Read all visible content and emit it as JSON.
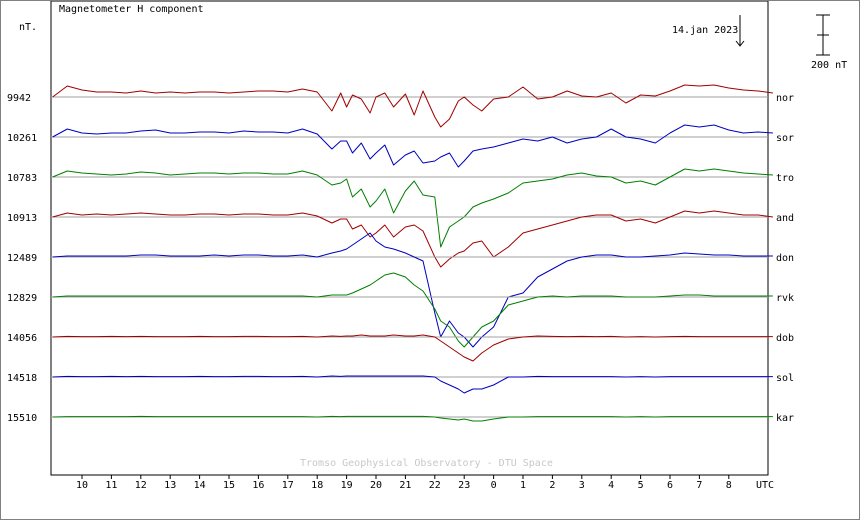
{
  "chart_data": {
    "type": "line",
    "title": "Magnetometer H component",
    "ylabel": "nT.",
    "date_label": "14.jan 2023",
    "scale_label": "200 nT",
    "scale_value_nT": 200,
    "credit": "Tromso Geophysical Observatory - DTU Space",
    "x_unit": "UTC",
    "x_ticks": [
      "10",
      "11",
      "12",
      "13",
      "14",
      "15",
      "16",
      "17",
      "18",
      "19",
      "20",
      "21",
      "22",
      "23",
      "0",
      "1",
      "2",
      "3",
      "4",
      "5",
      "6",
      "7",
      "8"
    ],
    "x_start_hour": 9,
    "x_end_hour": 33.5,
    "grid": "horizontal baselines",
    "colors": {
      "red": "#a00000",
      "blue": "#0000c0",
      "green": "#008000",
      "baseline": "#a0a0a0"
    },
    "series": [
      {
        "name": "nor",
        "baseline": "9942",
        "color": "#a00000",
        "x": [
          9.0,
          9.5,
          10.0,
          10.5,
          11.0,
          11.5,
          12.0,
          12.5,
          13.0,
          13.5,
          14.0,
          14.5,
          15.0,
          15.5,
          16.0,
          16.5,
          17.0,
          17.5,
          18.0,
          18.5,
          18.8,
          19.0,
          19.2,
          19.5,
          19.8,
          20.0,
          20.3,
          20.6,
          21.0,
          21.3,
          21.6,
          22.0,
          22.2,
          22.5,
          22.8,
          23.0,
          23.3,
          23.6,
          24.0,
          24.5,
          25.0,
          25.5,
          26.0,
          26.5,
          27.0,
          27.5,
          28.0,
          28.5,
          29.0,
          29.5,
          30.0,
          30.5,
          31.0,
          31.5,
          32.0,
          32.5,
          33.0,
          33.5
        ],
        "y": [
          0,
          55,
          35,
          25,
          25,
          20,
          30,
          20,
          25,
          20,
          25,
          25,
          20,
          25,
          30,
          30,
          25,
          40,
          25,
          -70,
          20,
          -50,
          10,
          -10,
          -80,
          0,
          20,
          -50,
          15,
          -90,
          30,
          -100,
          -150,
          -110,
          -20,
          0,
          -40,
          -70,
          -10,
          0,
          50,
          -10,
          0,
          30,
          5,
          0,
          20,
          -30,
          10,
          5,
          30,
          60,
          55,
          60,
          45,
          35,
          30,
          20
        ]
      },
      {
        "name": "sor",
        "baseline": "10261",
        "color": "#0000c0",
        "x": [
          9.0,
          9.5,
          10.0,
          10.5,
          11.0,
          11.5,
          12.0,
          12.5,
          13.0,
          13.5,
          14.0,
          14.5,
          15.0,
          15.5,
          16.0,
          16.5,
          17.0,
          17.5,
          18.0,
          18.5,
          18.8,
          19.0,
          19.2,
          19.5,
          19.8,
          20.0,
          20.3,
          20.6,
          21.0,
          21.3,
          21.6,
          22.0,
          22.2,
          22.5,
          22.8,
          23.0,
          23.3,
          23.6,
          24.0,
          24.5,
          25.0,
          25.5,
          26.0,
          26.5,
          27.0,
          27.5,
          28.0,
          28.5,
          29.0,
          29.5,
          30.0,
          30.5,
          31.0,
          31.5,
          32.0,
          32.5,
          33.0,
          33.5
        ],
        "y": [
          0,
          40,
          20,
          15,
          20,
          20,
          30,
          35,
          20,
          20,
          25,
          25,
          20,
          30,
          25,
          25,
          20,
          40,
          15,
          -60,
          -20,
          -20,
          -80,
          -30,
          -110,
          -80,
          -40,
          -140,
          -90,
          -70,
          -130,
          -120,
          -100,
          -80,
          -150,
          -120,
          -70,
          -60,
          -50,
          -30,
          -10,
          -20,
          0,
          -30,
          -10,
          0,
          40,
          0,
          -10,
          -30,
          20,
          60,
          50,
          60,
          35,
          20,
          25,
          20
        ]
      },
      {
        "name": "tro",
        "baseline": "10783",
        "color": "#008000",
        "x": [
          9.0,
          9.5,
          10.0,
          10.5,
          11.0,
          11.5,
          12.0,
          12.5,
          13.0,
          13.5,
          14.0,
          14.5,
          15.0,
          15.5,
          16.0,
          16.5,
          17.0,
          17.5,
          18.0,
          18.5,
          18.8,
          19.0,
          19.2,
          19.5,
          19.8,
          20.0,
          20.3,
          20.6,
          21.0,
          21.3,
          21.6,
          22.0,
          22.2,
          22.5,
          22.8,
          23.0,
          23.3,
          23.6,
          24.0,
          24.5,
          25.0,
          25.5,
          26.0,
          26.5,
          27.0,
          27.5,
          28.0,
          28.5,
          29.0,
          29.5,
          30.0,
          30.5,
          31.0,
          31.5,
          32.0,
          32.5,
          33.0,
          33.5
        ],
        "y": [
          0,
          30,
          20,
          15,
          10,
          15,
          25,
          20,
          10,
          15,
          20,
          20,
          15,
          20,
          20,
          15,
          15,
          30,
          10,
          -40,
          -30,
          -10,
          -100,
          -60,
          -150,
          -120,
          -60,
          -180,
          -70,
          -20,
          -90,
          -100,
          -350,
          -250,
          -220,
          -200,
          -150,
          -130,
          -110,
          -80,
          -30,
          -20,
          -10,
          10,
          20,
          5,
          0,
          -30,
          -20,
          -40,
          0,
          40,
          30,
          40,
          30,
          20,
          15,
          10
        ]
      },
      {
        "name": "and",
        "baseline": "10913",
        "color": "#a00000",
        "x": [
          9.0,
          9.5,
          10.0,
          10.5,
          11.0,
          11.5,
          12.0,
          12.5,
          13.0,
          13.5,
          14.0,
          14.5,
          15.0,
          15.5,
          16.0,
          16.5,
          17.0,
          17.5,
          18.0,
          18.5,
          18.8,
          19.0,
          19.2,
          19.5,
          19.8,
          20.0,
          20.3,
          20.6,
          21.0,
          21.3,
          21.6,
          22.0,
          22.2,
          22.5,
          22.8,
          23.0,
          23.3,
          23.6,
          24.0,
          24.5,
          25.0,
          25.5,
          26.0,
          26.5,
          27.0,
          27.5,
          28.0,
          28.5,
          29.0,
          29.5,
          30.0,
          30.5,
          31.0,
          31.5,
          32.0,
          32.5,
          33.0,
          33.5
        ],
        "y": [
          0,
          20,
          10,
          15,
          10,
          15,
          20,
          15,
          10,
          10,
          15,
          15,
          10,
          15,
          15,
          10,
          10,
          20,
          5,
          -30,
          -10,
          -10,
          -60,
          -40,
          -100,
          -80,
          -40,
          -100,
          -50,
          -40,
          -70,
          -200,
          -250,
          -210,
          -180,
          -170,
          -130,
          -120,
          -200,
          -150,
          -80,
          -60,
          -40,
          -20,
          0,
          10,
          10,
          -20,
          -10,
          -30,
          0,
          30,
          20,
          30,
          20,
          10,
          10,
          0
        ]
      },
      {
        "name": "don",
        "baseline": "12489",
        "color": "#0000c0",
        "x": [
          9.0,
          9.5,
          10.0,
          10.5,
          11.0,
          11.5,
          12.0,
          12.5,
          13.0,
          13.5,
          14.0,
          14.5,
          15.0,
          15.5,
          16.0,
          16.5,
          17.0,
          17.5,
          18.0,
          18.5,
          18.8,
          19.0,
          19.2,
          19.5,
          19.8,
          20.0,
          20.3,
          20.6,
          21.0,
          21.3,
          21.6,
          22.0,
          22.2,
          22.5,
          22.8,
          23.0,
          23.3,
          23.6,
          24.0,
          24.5,
          25.0,
          25.5,
          26.0,
          26.5,
          27.0,
          27.5,
          28.0,
          28.5,
          29.0,
          29.5,
          30.0,
          30.5,
          31.0,
          31.5,
          32.0,
          32.5,
          33.0,
          33.5
        ],
        "y": [
          0,
          5,
          5,
          5,
          5,
          5,
          10,
          10,
          5,
          5,
          5,
          10,
          5,
          10,
          10,
          5,
          5,
          10,
          0,
          20,
          30,
          40,
          60,
          90,
          120,
          80,
          50,
          40,
          20,
          0,
          -20,
          -280,
          -400,
          -320,
          -380,
          -400,
          -450,
          -400,
          -350,
          -200,
          -180,
          -100,
          -60,
          -20,
          0,
          10,
          10,
          0,
          0,
          5,
          10,
          20,
          15,
          10,
          10,
          5,
          5,
          5
        ]
      },
      {
        "name": "rvk",
        "baseline": "12829",
        "color": "#008000",
        "x": [
          9.0,
          9.5,
          10.0,
          10.5,
          11.0,
          11.5,
          12.0,
          12.5,
          13.0,
          13.5,
          14.0,
          14.5,
          15.0,
          15.5,
          16.0,
          16.5,
          17.0,
          17.5,
          18.0,
          18.5,
          18.8,
          19.0,
          19.2,
          19.5,
          19.8,
          20.0,
          20.3,
          20.6,
          21.0,
          21.3,
          21.6,
          22.0,
          22.2,
          22.5,
          22.8,
          23.0,
          23.3,
          23.6,
          24.0,
          24.5,
          25.0,
          25.5,
          26.0,
          26.5,
          27.0,
          27.5,
          28.0,
          28.5,
          29.0,
          29.5,
          30.0,
          30.5,
          31.0,
          31.5,
          32.0,
          32.5,
          33.0,
          33.5
        ],
        "y": [
          0,
          5,
          5,
          5,
          5,
          5,
          5,
          5,
          5,
          5,
          5,
          5,
          5,
          5,
          5,
          5,
          5,
          5,
          0,
          10,
          10,
          10,
          20,
          40,
          60,
          80,
          110,
          120,
          100,
          60,
          30,
          -60,
          -120,
          -150,
          -220,
          -250,
          -200,
          -150,
          -120,
          -40,
          -20,
          0,
          5,
          0,
          5,
          5,
          5,
          0,
          0,
          0,
          5,
          10,
          10,
          5,
          5,
          5,
          5,
          5
        ]
      },
      {
        "name": "dob",
        "baseline": "14056",
        "color": "#a00000",
        "x": [
          9.0,
          9.5,
          10.0,
          10.5,
          11.0,
          11.5,
          12.0,
          12.5,
          13.0,
          13.5,
          14.0,
          14.5,
          15.0,
          15.5,
          16.0,
          16.5,
          17.0,
          17.5,
          18.0,
          18.5,
          18.8,
          19.0,
          19.2,
          19.5,
          19.8,
          20.0,
          20.3,
          20.6,
          21.0,
          21.3,
          21.6,
          22.0,
          22.2,
          22.5,
          22.8,
          23.0,
          23.3,
          23.6,
          24.0,
          24.5,
          25.0,
          25.5,
          26.0,
          26.5,
          27.0,
          27.5,
          28.0,
          28.5,
          29.0,
          29.5,
          30.0,
          30.5,
          31.0,
          31.5,
          32.0,
          32.5,
          33.0,
          33.5
        ],
        "y": [
          0,
          3,
          2,
          2,
          3,
          2,
          3,
          2,
          2,
          2,
          3,
          2,
          2,
          3,
          3,
          2,
          2,
          3,
          0,
          5,
          3,
          5,
          5,
          10,
          5,
          5,
          5,
          10,
          5,
          5,
          10,
          0,
          -20,
          -50,
          -80,
          -100,
          -120,
          -80,
          -40,
          -10,
          0,
          5,
          3,
          2,
          3,
          2,
          3,
          0,
          2,
          0,
          2,
          3,
          2,
          2,
          2,
          2,
          2,
          2
        ]
      },
      {
        "name": "sol",
        "baseline": "14518",
        "color": "#0000c0",
        "x": [
          9.0,
          9.5,
          10.0,
          10.5,
          11.0,
          11.5,
          12.0,
          12.5,
          13.0,
          13.5,
          14.0,
          14.5,
          15.0,
          15.5,
          16.0,
          16.5,
          17.0,
          17.5,
          18.0,
          18.5,
          18.8,
          19.0,
          19.2,
          19.5,
          19.8,
          20.0,
          20.3,
          20.6,
          21.0,
          21.3,
          21.6,
          22.0,
          22.2,
          22.5,
          22.8,
          23.0,
          23.3,
          23.6,
          24.0,
          24.5,
          25.0,
          25.5,
          26.0,
          26.5,
          27.0,
          27.5,
          28.0,
          28.5,
          29.0,
          29.5,
          30.0,
          30.5,
          31.0,
          31.5,
          32.0,
          32.5,
          33.0,
          33.5
        ],
        "y": [
          0,
          3,
          2,
          2,
          3,
          2,
          3,
          2,
          2,
          2,
          3,
          2,
          2,
          3,
          3,
          2,
          2,
          3,
          0,
          5,
          3,
          5,
          5,
          5,
          5,
          5,
          5,
          5,
          5,
          5,
          5,
          0,
          -20,
          -40,
          -60,
          -80,
          -60,
          -60,
          -40,
          0,
          0,
          3,
          2,
          2,
          2,
          2,
          2,
          0,
          2,
          0,
          2,
          2,
          2,
          2,
          2,
          2,
          2,
          2
        ]
      },
      {
        "name": "kar",
        "baseline": "15510",
        "color": "#008000",
        "x": [
          9.0,
          9.5,
          10.0,
          10.5,
          11.0,
          11.5,
          12.0,
          12.5,
          13.0,
          13.5,
          14.0,
          14.5,
          15.0,
          15.5,
          16.0,
          16.5,
          17.0,
          17.5,
          18.0,
          18.5,
          18.8,
          19.0,
          19.2,
          19.5,
          19.8,
          20.0,
          20.3,
          20.6,
          21.0,
          21.3,
          21.6,
          22.0,
          22.2,
          22.5,
          22.8,
          23.0,
          23.3,
          23.6,
          24.0,
          24.5,
          25.0,
          25.5,
          26.0,
          26.5,
          27.0,
          27.5,
          28.0,
          28.5,
          29.0,
          29.5,
          30.0,
          30.5,
          31.0,
          31.5,
          32.0,
          32.5,
          33.0,
          33.5
        ],
        "y": [
          0,
          2,
          2,
          2,
          2,
          2,
          3,
          2,
          2,
          2,
          2,
          2,
          2,
          2,
          2,
          2,
          2,
          2,
          0,
          3,
          2,
          3,
          3,
          3,
          3,
          3,
          3,
          3,
          3,
          3,
          3,
          0,
          -5,
          -10,
          -15,
          -10,
          -20,
          -20,
          -10,
          0,
          0,
          2,
          2,
          2,
          2,
          2,
          2,
          0,
          2,
          0,
          2,
          2,
          2,
          2,
          2,
          2,
          2,
          2
        ]
      }
    ]
  }
}
